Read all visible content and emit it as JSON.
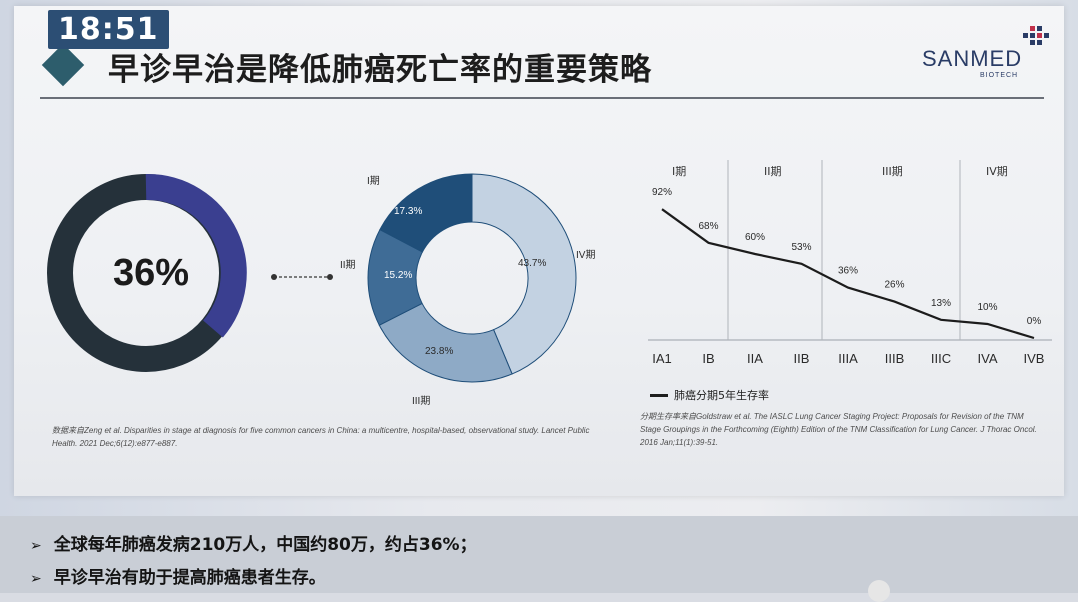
{
  "status": {
    "time": "18:51"
  },
  "slide": {
    "title": "早诊早治是降低肺癌死亡率的重要策略",
    "logo": {
      "name": "SANMED",
      "sub": "BIOTECH"
    },
    "big_percent": "36%",
    "donut": {
      "segments": [
        {
          "label": "I期",
          "value": "17.3%"
        },
        {
          "label": "II期",
          "value": "15.2%"
        },
        {
          "label": "III期",
          "value": "23.8%"
        },
        {
          "label": "IV期",
          "value": "43.7%"
        }
      ]
    },
    "source_left": "数据来自Zeng et al. Disparities in stage at diagnosis for five common cancers in China: a multicentre, hospital-based, observational study. Lancet Public Health. 2021 Dec;6(12):e877-e887.",
    "source_right": "分期生存率来自Goldstraw et al. The IASLC Lung Cancer Staging Project: Proposals for Revision of the TNM Stage Groupings in the Forthcoming (Eighth) Edition of the TNM Classification for Lung Cancer. J Thorac Oncol. 2016 Jan;11(1):39-51.",
    "legend": "肺癌分期5年生存率",
    "phases": [
      "I期",
      "II期",
      "III期",
      "IV期"
    ]
  },
  "chart_data": {
    "type": "line",
    "categories": [
      "IA1",
      "IB",
      "IIA",
      "IIB",
      "IIIA",
      "IIIB",
      "IIIC",
      "IVA",
      "IVB"
    ],
    "series": [
      {
        "name": "肺癌分期5年生存率",
        "values": [
          92,
          68,
          60,
          53,
          36,
          26,
          13,
          10,
          0
        ]
      }
    ],
    "data_labels": [
      "92%",
      "68%",
      "60%",
      "53%",
      "36%",
      "26%",
      "13%",
      "10%",
      "0%"
    ],
    "grid": false
  },
  "bullets": [
    "全球每年肺癌发病210万人，中国约80万，约占36%；",
    "早诊早治有助于提高肺癌患者生存。"
  ],
  "colors": {
    "dark_ring": "#25313a",
    "blue_ring": "#3a3f90",
    "seg_I": "#1f4e79",
    "seg_II": "#3f6c96",
    "seg_III": "#8eaac6",
    "seg_IV": "#c3d2e2"
  }
}
